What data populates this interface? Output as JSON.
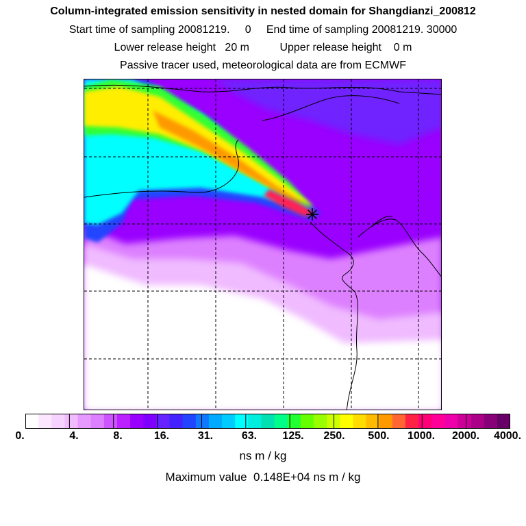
{
  "header": {
    "title": "Column-integrated emission sensitivity in nested domain for Shangdianzi_200812",
    "line2": "Start time of sampling 20081219.     0     End time of sampling 20081219. 30000",
    "line3": "Lower release height   20 m          Upper release height    0 m",
    "line4": "Passive tracer used, meteorological data are from ECMWF"
  },
  "map": {
    "background_color": "#9900ff",
    "grid_style": "dashed",
    "release_marker": "star-icon"
  },
  "colorbar": {
    "colors": [
      "#ffffff",
      "#fbe8ff",
      "#f6d2ff",
      "#f0bbff",
      "#e699ff",
      "#dd80ff",
      "#cc55ff",
      "#bb22ff",
      "#9900ff",
      "#7f00ff",
      "#6622ff",
      "#4422ff",
      "#2244ff",
      "#1177ff",
      "#00aaff",
      "#00ccff",
      "#00ffff",
      "#00eedd",
      "#00e0b0",
      "#00ff88",
      "#22ff33",
      "#66ff00",
      "#99ff00",
      "#ccff00",
      "#ffff00",
      "#ffdd00",
      "#ffbb00",
      "#ff9900",
      "#ff6633",
      "#ff2244",
      "#ff0077",
      "#ff0099",
      "#ee00aa",
      "#cc0099",
      "#aa0088",
      "#880077",
      "#660066"
    ],
    "tick_labels": [
      "0.",
      "4.",
      "8.",
      "16.",
      "31.",
      "63.",
      "125.",
      "250.",
      "500.",
      "1000.",
      "2000.",
      "4000."
    ],
    "unit": "ns m / kg",
    "maximum": "Maximum value  0.148E+04 ns m / kg"
  }
}
